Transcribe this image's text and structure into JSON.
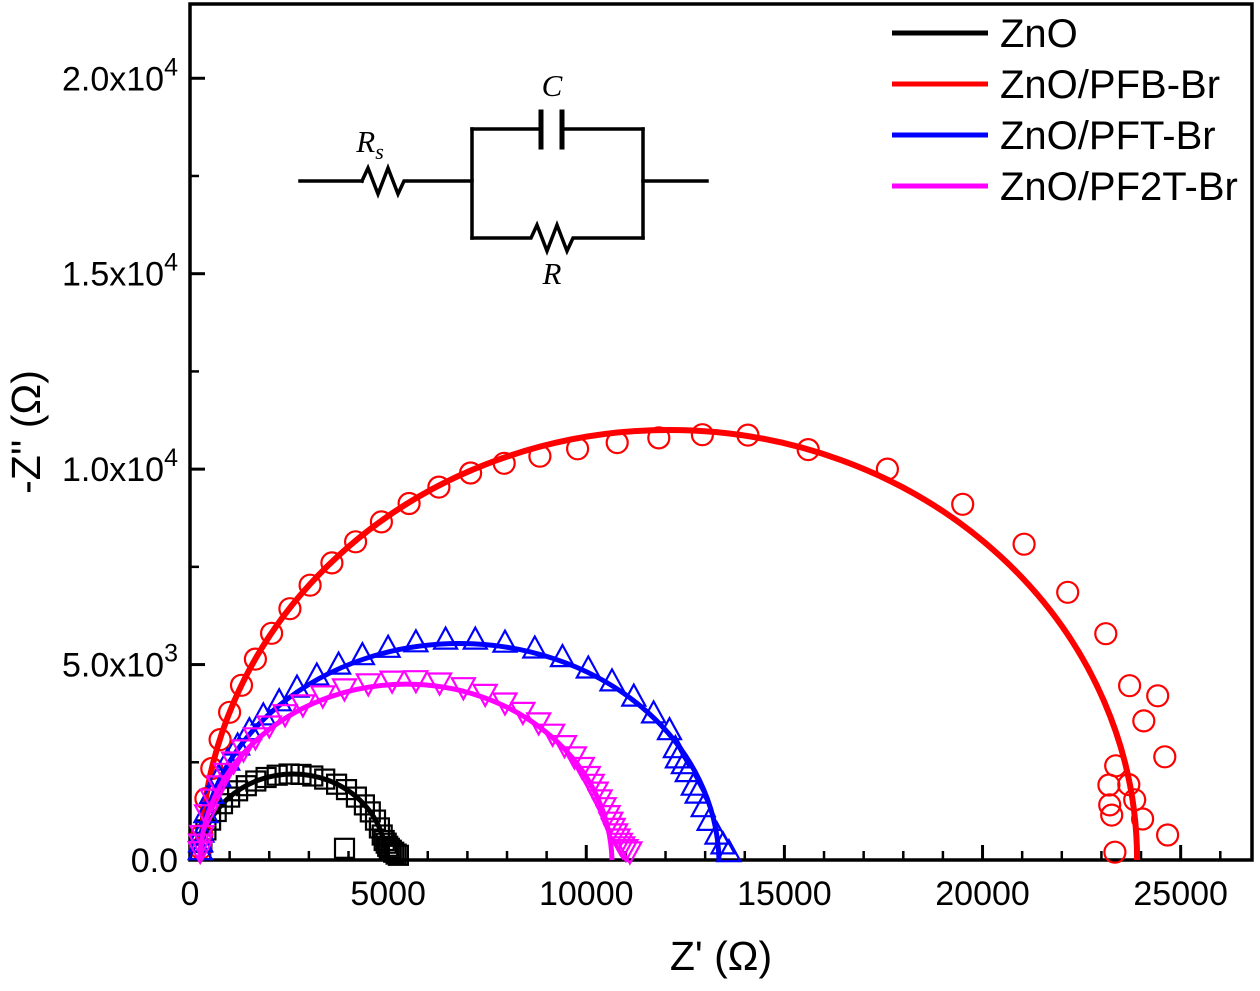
{
  "figure": {
    "background": "#ffffff",
    "border_color": "#000000"
  },
  "circuit": {
    "rs_main": "R",
    "rs_sub": "s",
    "c_label": "C",
    "r_label": "R"
  },
  "legend": {
    "position": "top-right",
    "items": [
      {
        "label": "ZnO",
        "color": "#000000"
      },
      {
        "label": "ZnO/PFB-Br",
        "color": "#FF0000"
      },
      {
        "label": "ZnO/PFT-Br",
        "color": "#0000FF"
      },
      {
        "label": "ZnO/PF2T-Br",
        "color": "#FF00FF"
      }
    ]
  },
  "chart_data": {
    "type": "scatter",
    "title": "",
    "xlabel": "Z' (Ω)",
    "ylabel": "-Z'' (Ω)",
    "grid": false,
    "legend_position": "top-right",
    "x_axis": {
      "min": 0,
      "max": 26800,
      "minor_step": 1000,
      "major_ticks": [
        0,
        5000,
        10000,
        15000,
        20000,
        25000
      ],
      "labels": [
        {
          "main": "0",
          "sup": ""
        },
        {
          "main": "5000",
          "sup": ""
        },
        {
          "main": "10000",
          "sup": ""
        },
        {
          "main": "15000",
          "sup": ""
        },
        {
          "main": "20000",
          "sup": ""
        },
        {
          "main": "25000",
          "sup": ""
        }
      ]
    },
    "y_axis": {
      "min": 0,
      "max": 21900,
      "minor_step": 2500,
      "major_ticks": [
        0,
        5000,
        10000,
        15000,
        20000
      ],
      "labels": [
        {
          "main": "0.0",
          "sup": ""
        },
        {
          "main": "5.0x10",
          "sup": "3"
        },
        {
          "main": "1.0x10",
          "sup": "4"
        },
        {
          "main": "1.5x10",
          "sup": "4"
        },
        {
          "main": "2.0x10",
          "sup": "4"
        }
      ]
    },
    "series": [
      {
        "name": "ZnO",
        "color": "#000000",
        "marker": "square-open",
        "line_width": 5,
        "fit": {
          "model": "Rs + (R||C) semicircle",
          "x_start": 250,
          "x_end": 4950,
          "peak": 2200
        },
        "points": [
          [
            300,
            450
          ],
          [
            400,
            770
          ],
          [
            520,
            1020
          ],
          [
            660,
            1240
          ],
          [
            820,
            1440
          ],
          [
            1000,
            1610
          ],
          [
            1200,
            1770
          ],
          [
            1420,
            1900
          ],
          [
            1660,
            2020
          ],
          [
            1920,
            2110
          ],
          [
            2200,
            2170
          ],
          [
            2500,
            2200
          ],
          [
            2800,
            2190
          ],
          [
            3100,
            2150
          ],
          [
            3400,
            2070
          ],
          [
            3700,
            1940
          ],
          [
            3950,
            1800
          ],
          [
            4200,
            1610
          ],
          [
            4400,
            1410
          ],
          [
            4550,
            1230
          ],
          [
            4680,
            1020
          ],
          [
            4780,
            820
          ],
          [
            4850,
            640
          ],
          [
            4900,
            500
          ],
          [
            4950,
            430
          ],
          [
            4990,
            350
          ],
          [
            5030,
            300
          ],
          [
            5080,
            250
          ],
          [
            5140,
            200
          ],
          [
            5200,
            150
          ],
          [
            5260,
            120
          ],
          [
            3900,
            300
          ],
          [
            270,
            250
          ]
        ]
      },
      {
        "name": "ZnO/PFB-Br",
        "color": "#FF0000",
        "marker": "circle-open",
        "line_width": 6,
        "fit": {
          "model": "Rs + (R||C) semicircle",
          "x_start": 280,
          "x_end": 23900,
          "peak": 11000
        },
        "points": [
          [
            270,
            300
          ],
          [
            300,
            640
          ],
          [
            400,
            1570
          ],
          [
            550,
            2340
          ],
          [
            760,
            3080
          ],
          [
            1000,
            3780
          ],
          [
            1300,
            4470
          ],
          [
            1650,
            5140
          ],
          [
            2060,
            5800
          ],
          [
            2520,
            6430
          ],
          [
            3030,
            7030
          ],
          [
            3580,
            7600
          ],
          [
            4180,
            8140
          ],
          [
            4830,
            8650
          ],
          [
            5530,
            9120
          ],
          [
            6280,
            9540
          ],
          [
            7080,
            9900
          ],
          [
            7930,
            10150
          ],
          [
            8830,
            10330
          ],
          [
            9780,
            10520
          ],
          [
            10780,
            10680
          ],
          [
            11830,
            10800
          ],
          [
            12930,
            10880
          ],
          [
            14080,
            10870
          ],
          [
            15600,
            10500
          ],
          [
            17600,
            10000
          ],
          [
            19500,
            9100
          ],
          [
            21050,
            8080
          ],
          [
            22150,
            6850
          ],
          [
            23110,
            5790
          ],
          [
            23710,
            4460
          ],
          [
            24420,
            4200
          ],
          [
            24070,
            3560
          ],
          [
            24600,
            2640
          ],
          [
            23360,
            2410
          ],
          [
            23190,
            1920
          ],
          [
            23690,
            1930
          ],
          [
            23840,
            1540
          ],
          [
            23210,
            1410
          ],
          [
            23260,
            1150
          ],
          [
            24040,
            1050
          ],
          [
            24670,
            640
          ],
          [
            23340,
            200
          ]
        ]
      },
      {
        "name": "ZnO/PFT-Br",
        "color": "#0000FF",
        "marker": "triangle-up-open",
        "line_width": 5,
        "fit": {
          "model": "Rs + (R||C) semicircle",
          "x_start": 250,
          "x_end": 13350,
          "peak": 5650
        },
        "points": [
          [
            260,
            250
          ],
          [
            270,
            450
          ],
          [
            300,
            700
          ],
          [
            400,
            1200
          ],
          [
            550,
            1690
          ],
          [
            730,
            2120
          ],
          [
            950,
            2540
          ],
          [
            1200,
            2930
          ],
          [
            1500,
            3320
          ],
          [
            1850,
            3700
          ],
          [
            2250,
            4060
          ],
          [
            2700,
            4410
          ],
          [
            3200,
            4720
          ],
          [
            3750,
            5000
          ],
          [
            4350,
            5240
          ],
          [
            5000,
            5430
          ],
          [
            5700,
            5570
          ],
          [
            6450,
            5640
          ],
          [
            7200,
            5640
          ],
          [
            7950,
            5560
          ],
          [
            8700,
            5410
          ],
          [
            9400,
            5190
          ],
          [
            10050,
            4900
          ],
          [
            10650,
            4570
          ],
          [
            11200,
            4180
          ],
          [
            11700,
            3750
          ],
          [
            12100,
            3320
          ],
          [
            12250,
            2860
          ],
          [
            12300,
            2600
          ],
          [
            12450,
            2450
          ],
          [
            12550,
            2250
          ],
          [
            12700,
            1900
          ],
          [
            12800,
            1700
          ],
          [
            12950,
            1350
          ],
          [
            13100,
            1000
          ],
          [
            13300,
            650
          ],
          [
            13450,
            400
          ],
          [
            13600,
            200
          ]
        ]
      },
      {
        "name": "ZnO/PF2T-Br",
        "color": "#FF00FF",
        "marker": "triangle-down-open",
        "line_width": 5,
        "fit": {
          "model": "Rs + (R||C) semicircle",
          "x_start": 250,
          "x_end": 10650,
          "peak": 4600
        },
        "points": [
          [
            258,
            230
          ],
          [
            268,
            420
          ],
          [
            300,
            640
          ],
          [
            420,
            1170
          ],
          [
            560,
            1570
          ],
          [
            720,
            1910
          ],
          [
            900,
            2230
          ],
          [
            1100,
            2520
          ],
          [
            1350,
            2830
          ],
          [
            1650,
            3140
          ],
          [
            2000,
            3440
          ],
          [
            2400,
            3730
          ],
          [
            2850,
            3980
          ],
          [
            3350,
            4210
          ],
          [
            3900,
            4390
          ],
          [
            4500,
            4520
          ],
          [
            5100,
            4590
          ],
          [
            5700,
            4600
          ],
          [
            6300,
            4540
          ],
          [
            6900,
            4420
          ],
          [
            7450,
            4250
          ],
          [
            7950,
            4030
          ],
          [
            8400,
            3790
          ],
          [
            8800,
            3520
          ],
          [
            9150,
            3230
          ],
          [
            9450,
            2940
          ],
          [
            9700,
            2650
          ],
          [
            9900,
            2380
          ],
          [
            10050,
            2150
          ],
          [
            10150,
            1950
          ],
          [
            10250,
            1750
          ],
          [
            10350,
            1550
          ],
          [
            10450,
            1350
          ],
          [
            10550,
            1150
          ],
          [
            10620,
            980
          ],
          [
            10680,
            820
          ],
          [
            10740,
            680
          ],
          [
            10800,
            550
          ],
          [
            10860,
            440
          ],
          [
            10920,
            350
          ],
          [
            11000,
            280
          ],
          [
            11100,
            220
          ]
        ]
      }
    ]
  }
}
